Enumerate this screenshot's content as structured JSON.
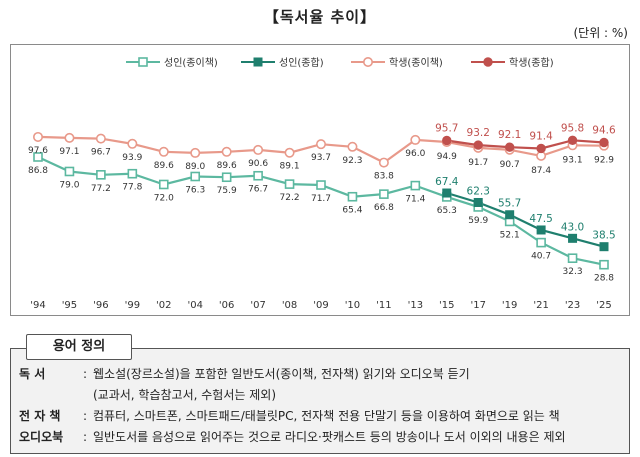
{
  "title": "【독서율 추이】",
  "unit": "(단위 : %)",
  "chart_data": {
    "type": "line",
    "categories": [
      "'94",
      "'95",
      "'96",
      "'99",
      "'02",
      "'04",
      "'06",
      "'07",
      "'08",
      "'09",
      "'10",
      "'11",
      "'13",
      "'15",
      "'17",
      "'19",
      "'21",
      "'23",
      "'25"
    ],
    "ylim": [
      0,
      100
    ],
    "grid": false,
    "legend_position": "top",
    "series": [
      {
        "name": "성인(종이책)",
        "color": "#5cb8a0",
        "marker": "open-square",
        "values": [
          86.8,
          79.0,
          77.2,
          77.8,
          72.0,
          76.3,
          75.9,
          76.7,
          72.2,
          71.7,
          65.4,
          66.8,
          71.4,
          65.3,
          59.9,
          52.1,
          40.7,
          32.3,
          28.8
        ]
      },
      {
        "name": "성인(종합)",
        "color": "#1f7f6e",
        "marker": "filled-square",
        "values": [
          null,
          null,
          null,
          null,
          null,
          null,
          null,
          null,
          null,
          null,
          null,
          null,
          null,
          67.4,
          62.3,
          55.7,
          47.5,
          43.0,
          38.5
        ]
      },
      {
        "name": "학생(종이책)",
        "color": "#e8998a",
        "marker": "open-circle",
        "values": [
          97.6,
          97.1,
          96.7,
          93.9,
          89.6,
          89.0,
          89.6,
          90.6,
          89.1,
          93.7,
          92.3,
          83.8,
          96.0,
          94.9,
          91.7,
          90.7,
          87.4,
          93.1,
          92.9
        ]
      },
      {
        "name": "학생(종합)",
        "color": "#c0504d",
        "marker": "filled-circle",
        "values": [
          null,
          null,
          null,
          null,
          null,
          null,
          null,
          null,
          null,
          null,
          null,
          null,
          null,
          95.7,
          93.2,
          92.1,
          91.4,
          95.8,
          94.6
        ]
      }
    ]
  },
  "glossary": {
    "title": "용어 정의",
    "rows": [
      {
        "term": "독      서",
        "sep": ":",
        "text": "웹소설(장르소설)을 포함한 일반도서(종이책, 전자책) 읽기와 오디오북 듣기"
      },
      {
        "term": "",
        "sep": "",
        "text": "(교과서, 학습참고서, 수험서는 제외)"
      },
      {
        "term": "전 자 책",
        "sep": ":",
        "text": "컴퓨터, 스마트폰, 스마트패드/태블릿PC, 전자책 전용 단말기 등을 이용하여 화면으로 읽는 책"
      },
      {
        "term": "오디오북",
        "sep": ":",
        "text": "일반도서를 음성으로 읽어주는 것으로 라디오·팟캐스트 등의 방송이나 도서 이외의 내용은 제외"
      }
    ]
  }
}
